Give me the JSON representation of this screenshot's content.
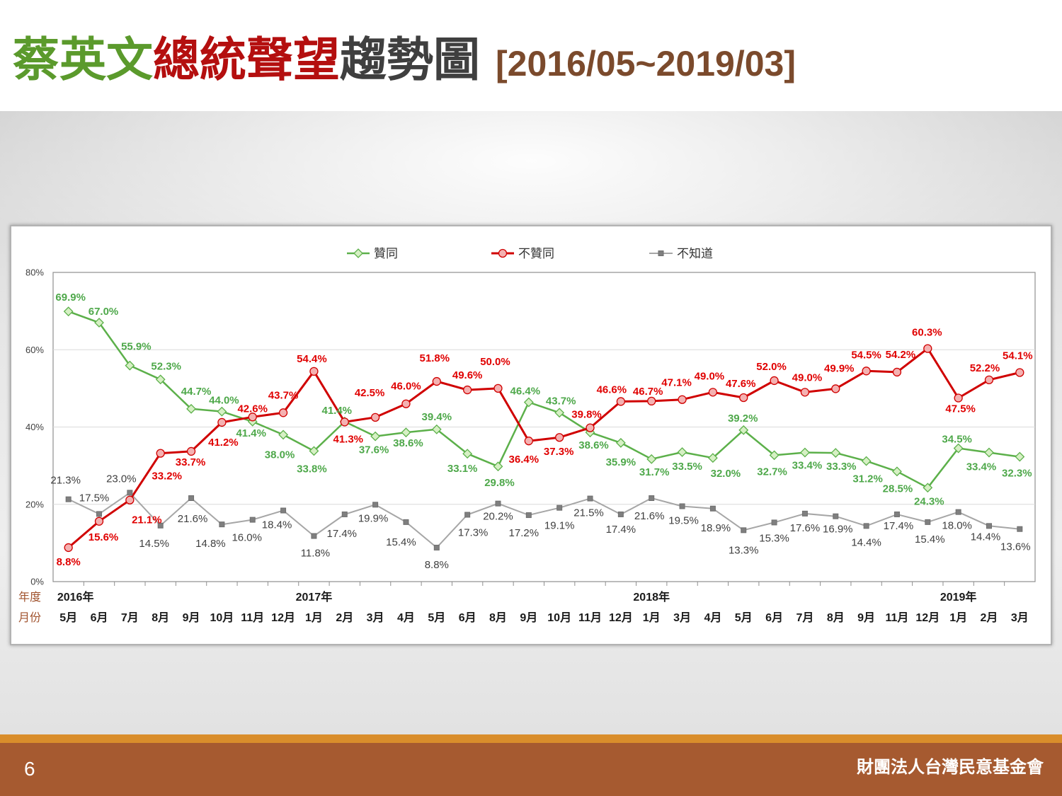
{
  "header": {
    "title_segments": [
      {
        "text": "蔡英文",
        "color": "#5b9a2c"
      },
      {
        "text": "總統聲望",
        "color": "#b40f0f"
      },
      {
        "text": "趨勢圖",
        "color": "#3f3f3f"
      },
      {
        "text": "[2016/05~2019/03]",
        "color": "#7b4a2c"
      }
    ]
  },
  "chart_data": {
    "type": "line",
    "legend_position": "top",
    "grid": true,
    "unit": "%",
    "ylim": [
      0,
      80
    ],
    "yticks": [
      0,
      20,
      40,
      60,
      80
    ],
    "row_labels": {
      "year": "年度",
      "month": "月份"
    },
    "row_label_color": "#a0522d",
    "categories": [
      "5月",
      "6月",
      "7月",
      "8月",
      "9月",
      "10月",
      "11月",
      "12月",
      "1月",
      "2月",
      "3月",
      "4月",
      "5月",
      "6月",
      "8月",
      "9月",
      "10月",
      "11月",
      "12月",
      "1月",
      "3月",
      "4月",
      "5月",
      "6月",
      "7月",
      "8月",
      "9月",
      "11月",
      "12月",
      "1月",
      "2月",
      "3月"
    ],
    "year_labels": [
      {
        "at": 0,
        "label": "2016年"
      },
      {
        "at": 8,
        "label": "2017年"
      },
      {
        "at": 19,
        "label": "2018年"
      },
      {
        "at": 29,
        "label": "2019年"
      }
    ],
    "series": [
      {
        "name": "贊同",
        "color": "#5cb04a",
        "marker": "diamond",
        "marker_fill": "#d6f0c4",
        "label_color": "#4ea84a",
        "values": [
          69.9,
          67.0,
          55.9,
          52.3,
          44.7,
          44.0,
          41.4,
          38.0,
          33.8,
          41.4,
          37.6,
          38.6,
          39.4,
          33.1,
          29.8,
          46.4,
          43.7,
          38.6,
          35.9,
          31.7,
          33.5,
          32.0,
          39.2,
          32.7,
          33.4,
          33.3,
          31.2,
          28.5,
          24.3,
          34.5,
          33.4,
          32.3
        ]
      },
      {
        "name": "不贊同",
        "color": "#d00000",
        "marker": "circle",
        "marker_fill": "#f4b1b1",
        "label_color": "#e00000",
        "values": [
          8.8,
          15.6,
          21.1,
          33.2,
          33.7,
          41.2,
          42.6,
          43.7,
          54.4,
          41.3,
          42.5,
          46.0,
          51.8,
          49.6,
          50.0,
          36.4,
          37.3,
          39.8,
          46.6,
          46.7,
          47.1,
          49.0,
          47.6,
          52.0,
          49.0,
          49.9,
          54.5,
          54.2,
          60.3,
          47.5,
          52.2,
          54.1
        ]
      },
      {
        "name": "不知道",
        "color": "#a6a6a6",
        "marker": "square",
        "marker_fill": "#7f7f7f",
        "label_color": "#404040",
        "values": [
          21.3,
          17.5,
          23.0,
          14.5,
          21.6,
          14.8,
          16.0,
          18.4,
          11.8,
          17.4,
          19.9,
          15.4,
          8.8,
          17.3,
          20.2,
          17.2,
          19.1,
          21.5,
          17.4,
          21.6,
          19.5,
          18.9,
          13.3,
          15.3,
          17.6,
          16.9,
          14.4,
          17.4,
          15.4,
          18.0,
          14.4,
          13.6
        ]
      }
    ]
  },
  "footer": {
    "page_number": "6",
    "organization": "財團法人台灣民意基金會",
    "band_color": "#a65a30",
    "stripe_color": "#d98d2b"
  }
}
